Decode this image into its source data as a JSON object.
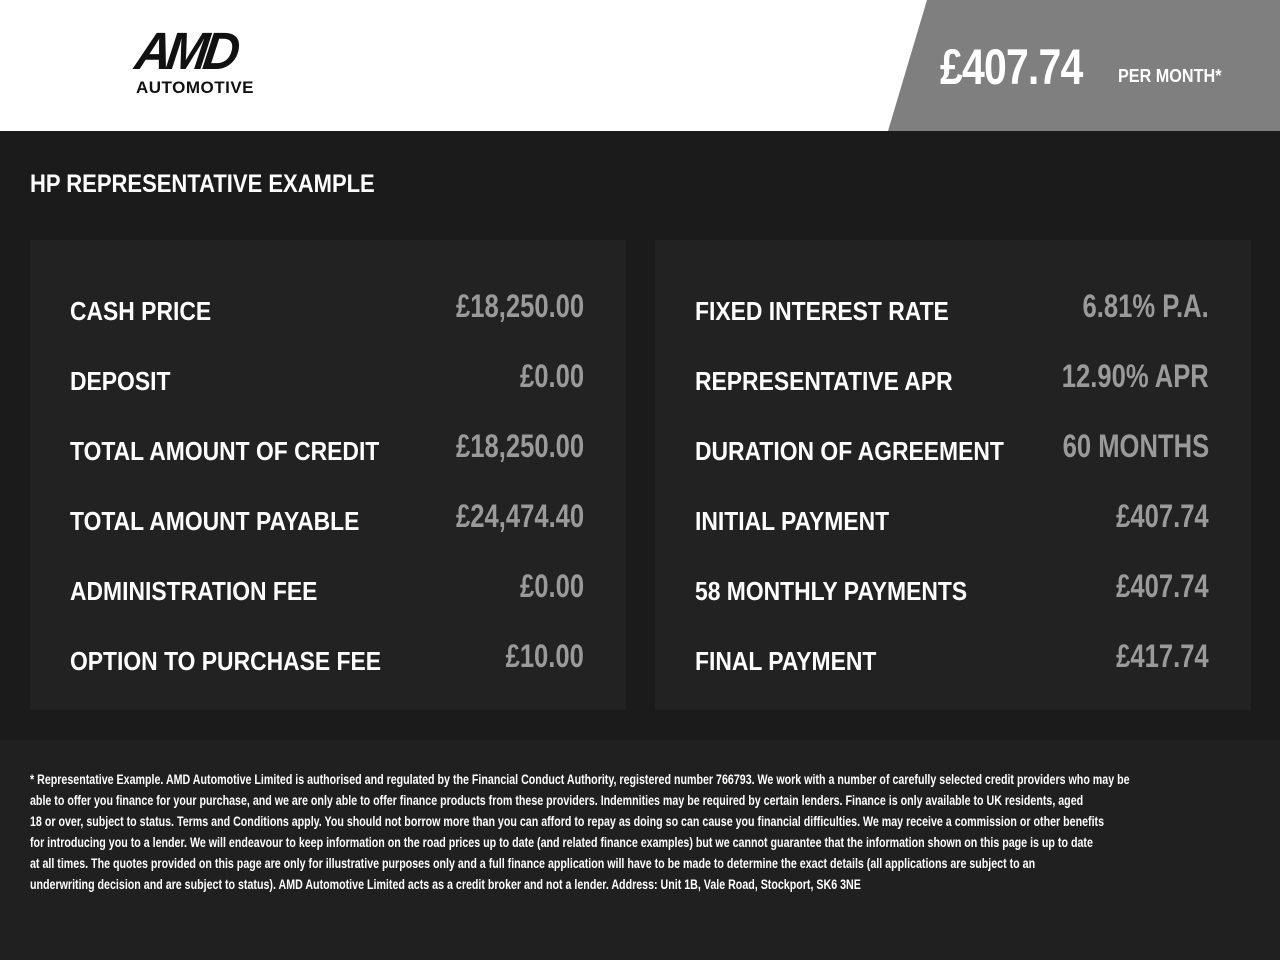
{
  "brand": {
    "logo_main": "AMD",
    "logo_sub": "AUTOMOTIVE"
  },
  "header": {
    "monthly_price": "£407.74",
    "per_month": "PER MONTH*"
  },
  "section_title": "HP REPRESENTATIVE EXAMPLE",
  "left": [
    {
      "label": "CASH PRICE",
      "value": "£18,250.00"
    },
    {
      "label": "DEPOSIT",
      "value": "£0.00"
    },
    {
      "label": "TOTAL AMOUNT OF CREDIT",
      "value": "£18,250.00"
    },
    {
      "label": "TOTAL AMOUNT PAYABLE",
      "value": "£24,474.40"
    },
    {
      "label": "ADMINISTRATION FEE",
      "value": "£0.00"
    },
    {
      "label": "OPTION TO PURCHASE FEE",
      "value": "£10.00"
    }
  ],
  "right": [
    {
      "label": "FIXED INTEREST RATE",
      "value": "6.81% P.A."
    },
    {
      "label": "REPRESENTATIVE APR",
      "value": "12.90% APR"
    },
    {
      "label": "DURATION OF AGREEMENT",
      "value": "60 MONTHS"
    },
    {
      "label": "INITIAL PAYMENT",
      "value": "£407.74"
    },
    {
      "label": "58 MONTHLY PAYMENTS",
      "value": "£407.74"
    },
    {
      "label": "FINAL PAYMENT",
      "value": "£417.74"
    }
  ],
  "disclaimer": [
    "* Representative Example. AMD Automotive Limited is authorised and regulated by the Financial Conduct Authority, registered number 766793. We work with a number of carefully selected credit providers who may be",
    "able to offer you finance for your purchase, and we are only able to offer finance products from these providers. Indemnities may be required by certain lenders. Finance is only available to UK residents, aged",
    "18 or over, subject to status. Terms and Conditions apply. You should not borrow more than you can afford to repay as doing so can cause you financial difficulties. We may receive a commission or other benefits",
    "for introducing you to a lender. We will endeavour to keep information on the road prices up to date (and related finance examples) but we cannot guarantee that the information shown on this page is up to date",
    "at all times. The quotes provided on this page are only for illustrative purposes only and a full finance application will have to be made to determine the exact details (all applications are subject to an",
    "underwriting decision and are subject to status). AMD Automotive Limited acts as a credit broker and not a lender. Address: Unit 1B, Vale Road, Stockport, SK6 3NE"
  ]
}
